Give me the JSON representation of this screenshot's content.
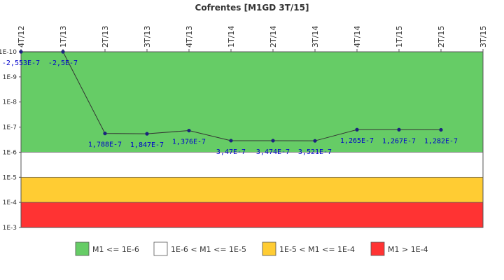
{
  "chart_data": {
    "type": "line",
    "title": "Cofrentes [M1GD 3T/15]",
    "xlabel": "",
    "ylabel": "",
    "y_scale": "log",
    "y_axis_inverted": true,
    "ylim": [
      1e-10,
      0.001
    ],
    "y_ticks": [
      "1E-10",
      "1E-9",
      "1E-8",
      "1E-7",
      "1E-6",
      "1E-5",
      "1E-4",
      "1E-3"
    ],
    "categories": [
      "4T/12",
      "1T/13",
      "2T/13",
      "3T/13",
      "4T/13",
      "1T/14",
      "2T/14",
      "3T/14",
      "4T/14",
      "1T/15",
      "2T/15",
      "3T/15"
    ],
    "series": [
      {
        "values": [
          -2.553e-07,
          -2.5e-07,
          1.788e-07,
          1.847e-07,
          1.376e-07,
          3.47e-07,
          3.474e-07,
          3.521e-07,
          1.265e-07,
          1.267e-07,
          1.282e-07,
          null
        ],
        "labels": [
          "-2,553E-7",
          "-2,5E-7",
          "1,788E-7",
          "1,847E-7",
          "1,376E-7",
          "3,47E-7",
          "3,474E-7",
          "3,521E-7",
          "1,265E-7",
          "1,267E-7",
          "1,282E-7",
          ""
        ],
        "color": "#1a237e"
      }
    ],
    "bands": [
      {
        "label": "M1 <= 1E-6",
        "from": 1e-10,
        "to": 1e-06,
        "color": "#66cc66"
      },
      {
        "label": "1E-6 < M1 <= 1E-5",
        "from": 1e-06,
        "to": 1e-05,
        "color": "#ffffff"
      },
      {
        "label": "1E-5 < M1 <= 1E-4",
        "from": 1e-05,
        "to": 0.0001,
        "color": "#ffcc33"
      },
      {
        "label": "M1 > 1E-4",
        "from": 0.0001,
        "to": 0.001,
        "color": "#ff3333"
      }
    ],
    "grid": false,
    "legend_position": "bottom"
  }
}
